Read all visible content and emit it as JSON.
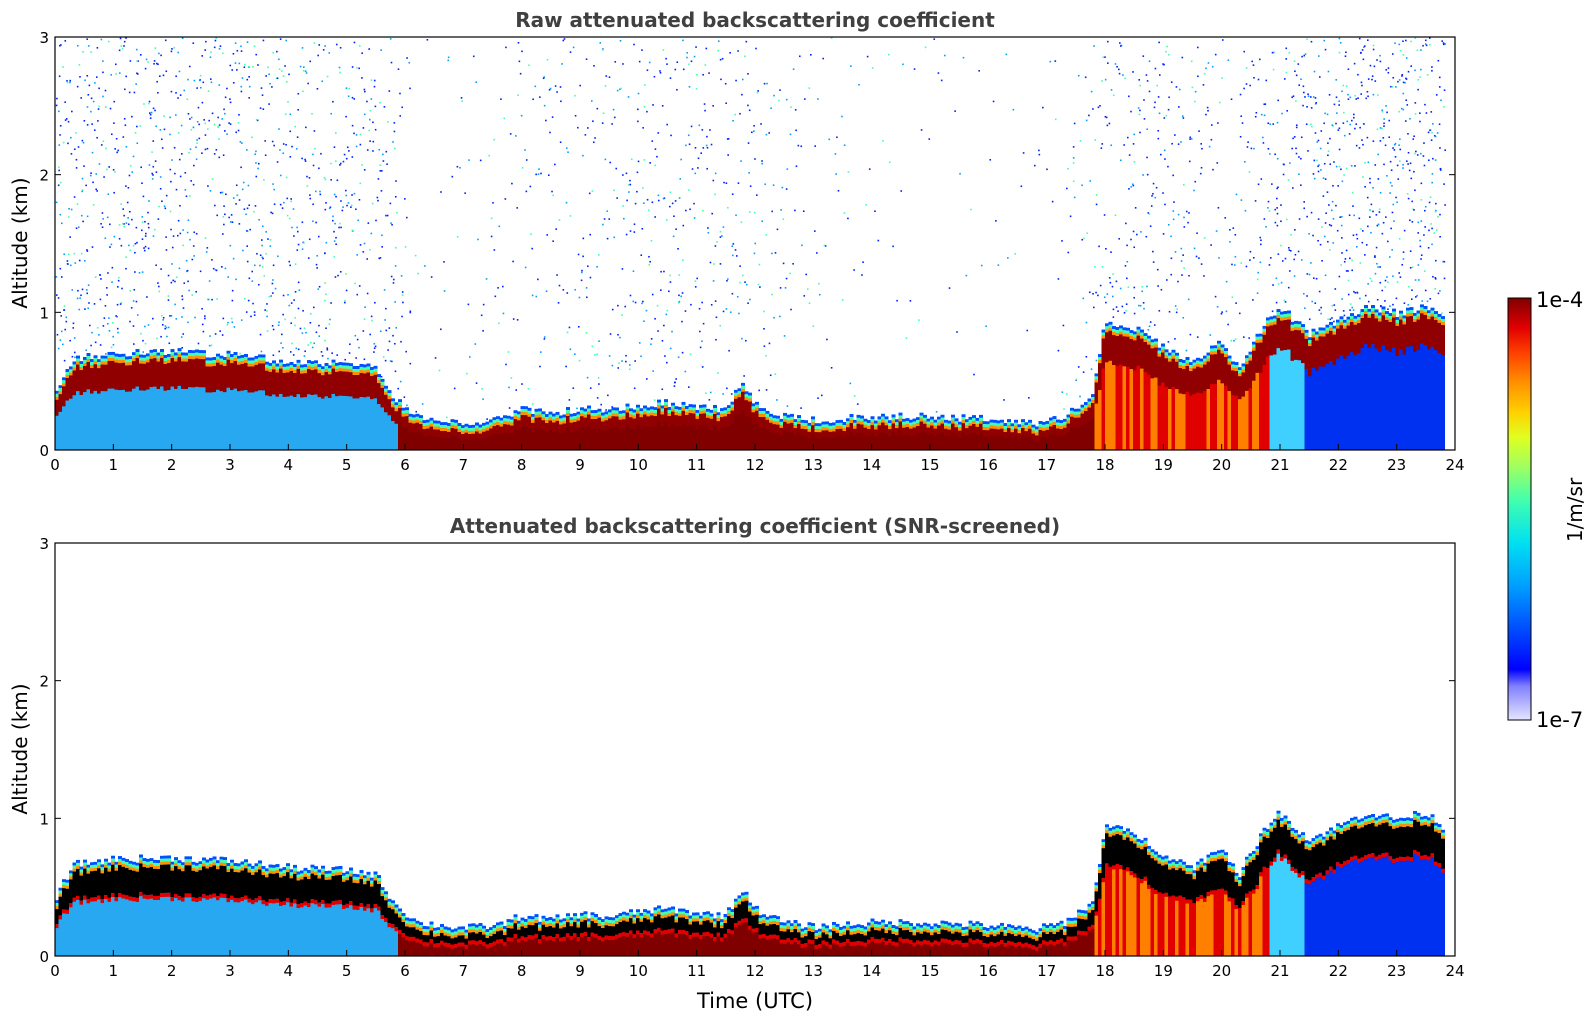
{
  "chart_data": [
    {
      "type": "heatmap",
      "title": "Raw attenuated backscattering coefficient",
      "xlabel": "",
      "ylabel": "Altitude (km)",
      "xlim": [
        0,
        24
      ],
      "ylim": [
        0,
        3
      ],
      "xticks": [
        "0",
        "1",
        "2",
        "3",
        "4",
        "5",
        "6",
        "7",
        "8",
        "9",
        "10",
        "11",
        "12",
        "13",
        "14",
        "15",
        "16",
        "17",
        "18",
        "19",
        "20",
        "21",
        "22",
        "23",
        "24"
      ],
      "yticks": [
        "0",
        "1",
        "2",
        "3"
      ],
      "boundary_layer_top_km": [
        [
          0.0,
          0.35
        ],
        [
          0.3,
          0.62
        ],
        [
          1,
          0.66
        ],
        [
          2,
          0.67
        ],
        [
          3,
          0.65
        ],
        [
          4,
          0.6
        ],
        [
          5,
          0.58
        ],
        [
          5.5,
          0.55
        ],
        [
          5.8,
          0.35
        ],
        [
          6.2,
          0.2
        ],
        [
          7,
          0.16
        ],
        [
          7.6,
          0.18
        ],
        [
          8,
          0.25
        ],
        [
          8.5,
          0.22
        ],
        [
          9,
          0.26
        ],
        [
          9.5,
          0.24
        ],
        [
          10,
          0.28
        ],
        [
          10.5,
          0.3
        ],
        [
          11,
          0.27
        ],
        [
          11.5,
          0.25
        ],
        [
          11.8,
          0.45
        ],
        [
          12,
          0.3
        ],
        [
          12.5,
          0.2
        ],
        [
          13,
          0.17
        ],
        [
          14,
          0.2
        ],
        [
          15,
          0.2
        ],
        [
          16,
          0.18
        ],
        [
          16.8,
          0.15
        ],
        [
          17.3,
          0.2
        ],
        [
          17.8,
          0.35
        ],
        [
          18,
          0.9
        ],
        [
          18.5,
          0.85
        ],
        [
          19,
          0.7
        ],
        [
          19.5,
          0.6
        ],
        [
          20,
          0.75
        ],
        [
          20.3,
          0.55
        ],
        [
          20.7,
          0.85
        ],
        [
          21,
          1.0
        ],
        [
          21.5,
          0.8
        ],
        [
          22,
          0.9
        ],
        [
          22.5,
          1.0
        ],
        [
          23,
          0.95
        ],
        [
          23.5,
          1.0
        ],
        [
          23.8,
          0.9
        ]
      ],
      "noise_intensity": [
        [
          0,
          0.9
        ],
        [
          5.8,
          0.7
        ],
        [
          6.2,
          0.08
        ],
        [
          7,
          0.15
        ],
        [
          8,
          0.3
        ],
        [
          9,
          0.4
        ],
        [
          10,
          0.55
        ],
        [
          11,
          0.6
        ],
        [
          12,
          0.45
        ],
        [
          13,
          0.2
        ],
        [
          14,
          0.1
        ],
        [
          15,
          0.08
        ],
        [
          17,
          0.08
        ],
        [
          18,
          0.5
        ],
        [
          19,
          0.6
        ],
        [
          20,
          0.3
        ],
        [
          21,
          0.6
        ],
        [
          22,
          0.9
        ],
        [
          23.8,
          0.9
        ]
      ]
    },
    {
      "type": "heatmap",
      "title": "Attenuated backscattering coefficient (SNR-screened)",
      "xlabel": "Time (UTC)",
      "ylabel": "Altitude (km)",
      "xlim": [
        0,
        24
      ],
      "ylim": [
        0,
        3
      ],
      "xticks": [
        "0",
        "1",
        "2",
        "3",
        "4",
        "5",
        "6",
        "7",
        "8",
        "9",
        "10",
        "11",
        "12",
        "13",
        "14",
        "15",
        "16",
        "17",
        "18",
        "19",
        "20",
        "21",
        "22",
        "23",
        "24"
      ],
      "yticks": [
        "0",
        "1",
        "2",
        "3"
      ]
    }
  ],
  "colorbar": {
    "label": "1/m/sr",
    "max_label": "1e-4",
    "min_label": "1e-7",
    "colors": [
      "#e6e6ff",
      "#b3b3ff",
      "#8080ff",
      "#0000ff",
      "#0040ff",
      "#0080ff",
      "#00b4ff",
      "#00e0f0",
      "#40ffb0",
      "#a0ff60",
      "#e0ff20",
      "#ffd000",
      "#ff9000",
      "#ff4000",
      "#e00000",
      "#800000"
    ]
  }
}
